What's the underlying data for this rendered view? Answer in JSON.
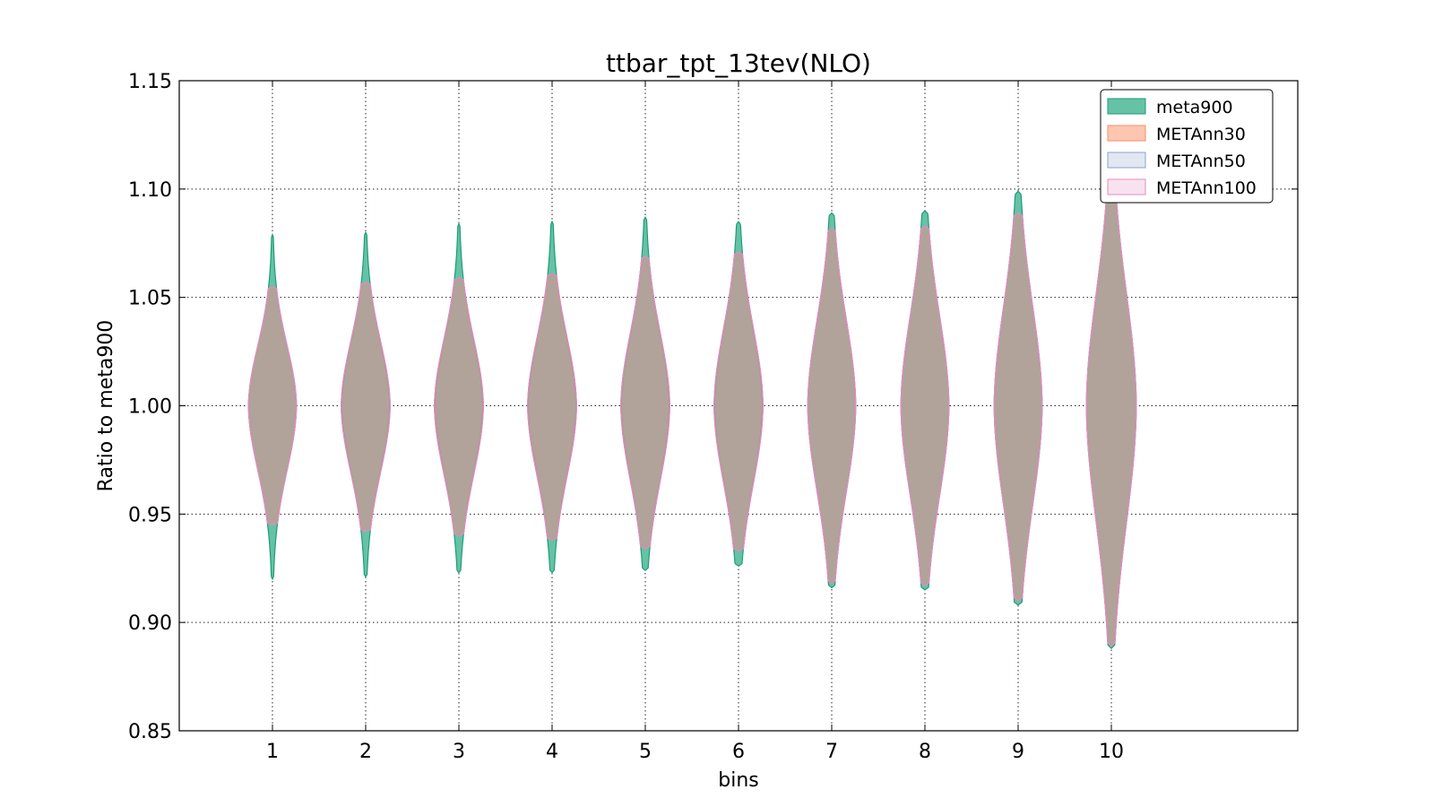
{
  "chart_data": {
    "type": "violin",
    "title": "ttbar_tpt_13tev(NLO)",
    "xlabel": "bins",
    "ylabel": "Ratio to meta900",
    "xlim": [
      0,
      12
    ],
    "ylim": [
      0.85,
      1.15
    ],
    "xticks": [
      1,
      2,
      3,
      4,
      5,
      6,
      7,
      8,
      9,
      10
    ],
    "yticks": [
      0.85,
      0.9,
      0.95,
      1.0,
      1.05,
      1.1,
      1.15
    ],
    "ytick_labels": [
      "0.85",
      "0.90",
      "0.95",
      "1.00",
      "1.05",
      "1.10",
      "1.15"
    ],
    "grid": true,
    "legend_position": "top-right",
    "series": [
      {
        "name": "meta900",
        "fill": "#66c2a5",
        "edge": "#1b9e77",
        "fill_opacity": 1.0,
        "violins": [
          {
            "bin": 1,
            "min": 0.92,
            "max": 1.079,
            "center": 1.0,
            "width": 0.5,
            "spread_up": 0.028,
            "spread_down": 0.03
          },
          {
            "bin": 2,
            "min": 0.921,
            "max": 1.08,
            "center": 1.0,
            "width": 0.5,
            "spread_up": 0.03,
            "spread_down": 0.031
          },
          {
            "bin": 3,
            "min": 0.923,
            "max": 1.084,
            "center": 1.0,
            "width": 0.5,
            "spread_up": 0.031,
            "spread_down": 0.032
          },
          {
            "bin": 4,
            "min": 0.923,
            "max": 1.085,
            "center": 1.0,
            "width": 0.5,
            "spread_up": 0.032,
            "spread_down": 0.033
          },
          {
            "bin": 5,
            "min": 0.924,
            "max": 1.087,
            "center": 1.0,
            "width": 0.5,
            "spread_up": 0.034,
            "spread_down": 0.035
          },
          {
            "bin": 6,
            "min": 0.926,
            "max": 1.085,
            "center": 1.0,
            "width": 0.5,
            "spread_up": 0.036,
            "spread_down": 0.036
          },
          {
            "bin": 7,
            "min": 0.916,
            "max": 1.089,
            "center": 1.0,
            "width": 0.5,
            "spread_up": 0.04,
            "spread_down": 0.04
          },
          {
            "bin": 8,
            "min": 0.915,
            "max": 1.09,
            "center": 1.0,
            "width": 0.5,
            "spread_up": 0.042,
            "spread_down": 0.042
          },
          {
            "bin": 9,
            "min": 0.908,
            "max": 1.099,
            "center": 1.0,
            "width": 0.5,
            "spread_up": 0.046,
            "spread_down": 0.046
          },
          {
            "bin": 10,
            "min": 0.888,
            "max": 1.114,
            "center": 1.0,
            "width": 0.52,
            "spread_up": 0.052,
            "spread_down": 0.054
          }
        ]
      },
      {
        "name": "METAnn30",
        "fill": "#fc8d62",
        "edge": "#fc8d62",
        "fill_opacity": 0.5,
        "violins": [
          {
            "bin": 1,
            "min": 0.945,
            "max": 1.055,
            "center": 1.0,
            "width": 0.5,
            "spread_up": 0.028,
            "spread_down": 0.03
          },
          {
            "bin": 2,
            "min": 0.942,
            "max": 1.057,
            "center": 1.0,
            "width": 0.51,
            "spread_up": 0.03,
            "spread_down": 0.031
          },
          {
            "bin": 3,
            "min": 0.94,
            "max": 1.059,
            "center": 1.0,
            "width": 0.51,
            "spread_up": 0.031,
            "spread_down": 0.032
          },
          {
            "bin": 4,
            "min": 0.938,
            "max": 1.061,
            "center": 1.0,
            "width": 0.51,
            "spread_up": 0.032,
            "spread_down": 0.033
          },
          {
            "bin": 5,
            "min": 0.934,
            "max": 1.069,
            "center": 1.0,
            "width": 0.51,
            "spread_up": 0.034,
            "spread_down": 0.035
          },
          {
            "bin": 6,
            "min": 0.933,
            "max": 1.071,
            "center": 1.0,
            "width": 0.51,
            "spread_up": 0.036,
            "spread_down": 0.036
          },
          {
            "bin": 7,
            "min": 0.918,
            "max": 1.082,
            "center": 1.0,
            "width": 0.5,
            "spread_up": 0.04,
            "spread_down": 0.04
          },
          {
            "bin": 8,
            "min": 0.917,
            "max": 1.083,
            "center": 1.0,
            "width": 0.5,
            "spread_up": 0.042,
            "spread_down": 0.042
          },
          {
            "bin": 9,
            "min": 0.91,
            "max": 1.089,
            "center": 1.0,
            "width": 0.5,
            "spread_up": 0.046,
            "spread_down": 0.046
          },
          {
            "bin": 10,
            "min": 0.889,
            "max": 1.11,
            "center": 1.0,
            "width": 0.52,
            "spread_up": 0.052,
            "spread_down": 0.054
          }
        ]
      },
      {
        "name": "METAnn50",
        "fill": "#8da0cb",
        "edge": "#8da0cb",
        "fill_opacity": 0.22,
        "violins": [
          {
            "bin": 1,
            "min": 0.945,
            "max": 1.055,
            "center": 1.0,
            "width": 0.5,
            "spread_up": 0.028,
            "spread_down": 0.03
          },
          {
            "bin": 2,
            "min": 0.942,
            "max": 1.057,
            "center": 1.0,
            "width": 0.51,
            "spread_up": 0.03,
            "spread_down": 0.031
          },
          {
            "bin": 3,
            "min": 0.94,
            "max": 1.059,
            "center": 1.0,
            "width": 0.51,
            "spread_up": 0.031,
            "spread_down": 0.032
          },
          {
            "bin": 4,
            "min": 0.938,
            "max": 1.061,
            "center": 1.0,
            "width": 0.51,
            "spread_up": 0.032,
            "spread_down": 0.033
          },
          {
            "bin": 5,
            "min": 0.934,
            "max": 1.069,
            "center": 1.0,
            "width": 0.51,
            "spread_up": 0.034,
            "spread_down": 0.035
          },
          {
            "bin": 6,
            "min": 0.933,
            "max": 1.071,
            "center": 1.0,
            "width": 0.51,
            "spread_up": 0.036,
            "spread_down": 0.036
          },
          {
            "bin": 7,
            "min": 0.918,
            "max": 1.082,
            "center": 1.0,
            "width": 0.5,
            "spread_up": 0.04,
            "spread_down": 0.04
          },
          {
            "bin": 8,
            "min": 0.917,
            "max": 1.083,
            "center": 1.0,
            "width": 0.5,
            "spread_up": 0.042,
            "spread_down": 0.042
          },
          {
            "bin": 9,
            "min": 0.91,
            "max": 1.089,
            "center": 1.0,
            "width": 0.5,
            "spread_up": 0.046,
            "spread_down": 0.046
          },
          {
            "bin": 10,
            "min": 0.889,
            "max": 1.11,
            "center": 1.0,
            "width": 0.52,
            "spread_up": 0.052,
            "spread_down": 0.054
          }
        ]
      },
      {
        "name": "METAnn100",
        "fill": "#e78ac3",
        "edge": "#e78ac3",
        "fill_opacity": 0.15,
        "violins": [
          {
            "bin": 1,
            "min": 0.945,
            "max": 1.055,
            "center": 1.0,
            "width": 0.5,
            "spread_up": 0.028,
            "spread_down": 0.03
          },
          {
            "bin": 2,
            "min": 0.942,
            "max": 1.057,
            "center": 1.0,
            "width": 0.51,
            "spread_up": 0.03,
            "spread_down": 0.031
          },
          {
            "bin": 3,
            "min": 0.94,
            "max": 1.059,
            "center": 1.0,
            "width": 0.51,
            "spread_up": 0.031,
            "spread_down": 0.032
          },
          {
            "bin": 4,
            "min": 0.938,
            "max": 1.061,
            "center": 1.0,
            "width": 0.51,
            "spread_up": 0.032,
            "spread_down": 0.033
          },
          {
            "bin": 5,
            "min": 0.934,
            "max": 1.069,
            "center": 1.0,
            "width": 0.51,
            "spread_up": 0.034,
            "spread_down": 0.035
          },
          {
            "bin": 6,
            "min": 0.933,
            "max": 1.071,
            "center": 1.0,
            "width": 0.51,
            "spread_up": 0.036,
            "spread_down": 0.036
          },
          {
            "bin": 7,
            "min": 0.918,
            "max": 1.082,
            "center": 1.0,
            "width": 0.5,
            "spread_up": 0.04,
            "spread_down": 0.04
          },
          {
            "bin": 8,
            "min": 0.917,
            "max": 1.083,
            "center": 1.0,
            "width": 0.5,
            "spread_up": 0.042,
            "spread_down": 0.042
          },
          {
            "bin": 9,
            "min": 0.91,
            "max": 1.089,
            "center": 1.0,
            "width": 0.5,
            "spread_up": 0.046,
            "spread_down": 0.046
          },
          {
            "bin": 10,
            "min": 0.889,
            "max": 1.11,
            "center": 1.0,
            "width": 0.52,
            "spread_up": 0.052,
            "spread_down": 0.054
          }
        ]
      }
    ]
  }
}
